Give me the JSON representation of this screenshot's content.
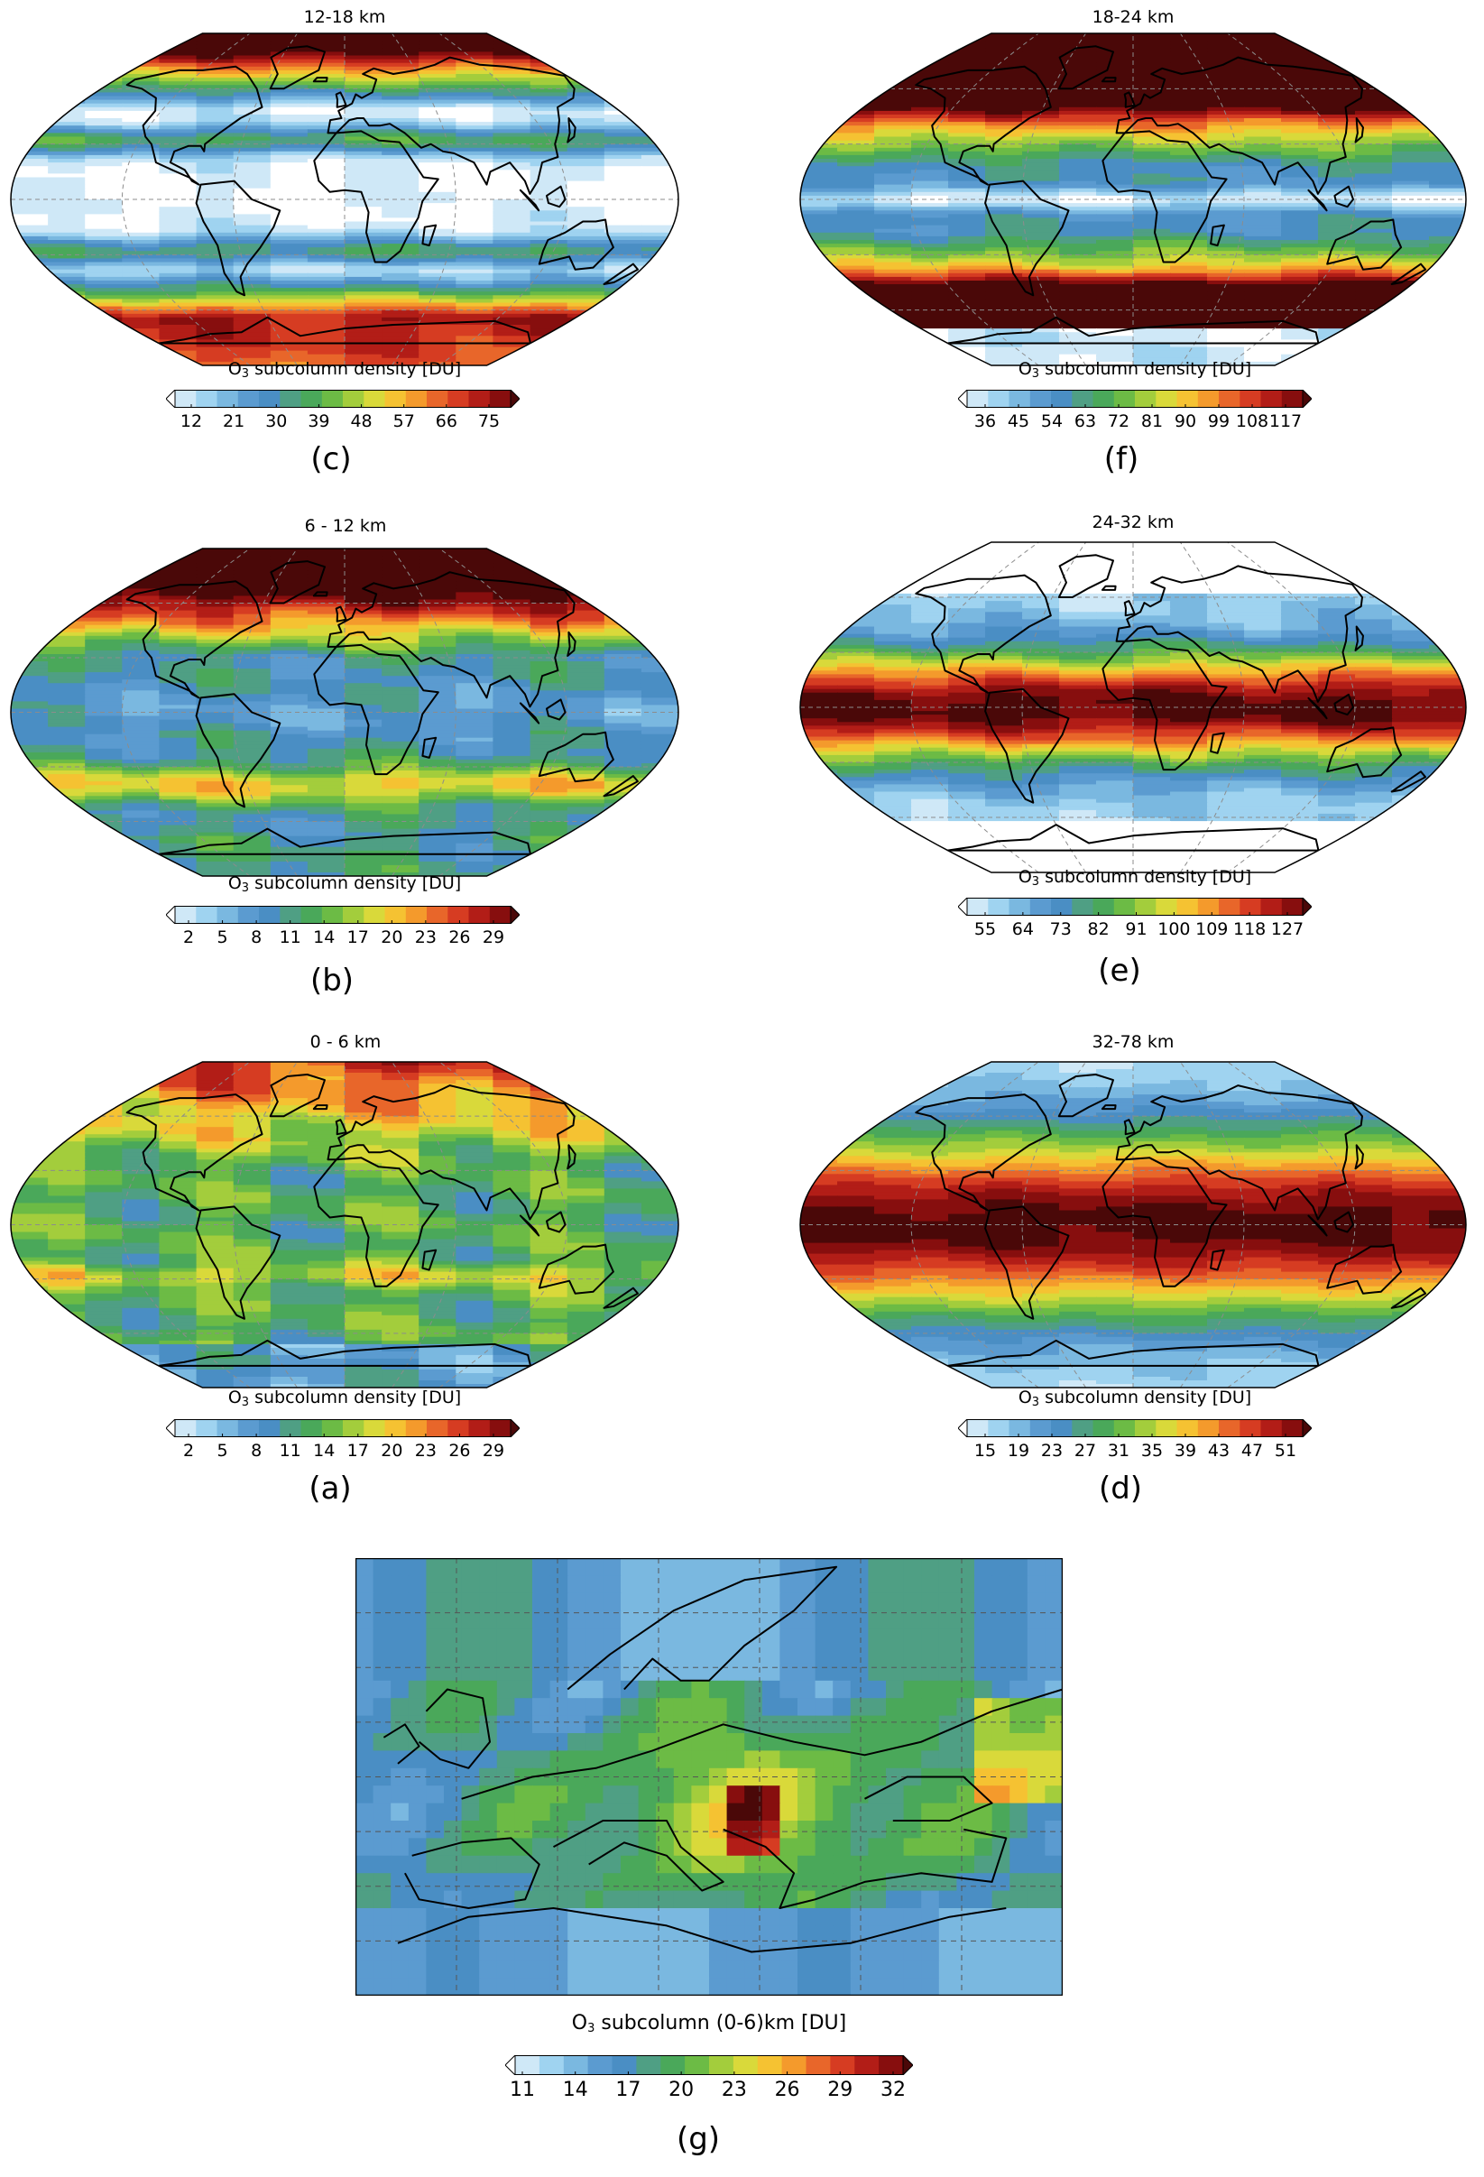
{
  "panels": [
    {
      "id": "c",
      "title": "12-18 km",
      "label": "(c)",
      "cb_prefix": "O",
      "cb_sub": "3",
      "cb_suffix": " subcolumn density [DU]",
      "ticks": [
        "12",
        "21",
        "30",
        "39",
        "48",
        "57",
        "66",
        "75"
      ],
      "type": "global",
      "pattern": "c"
    },
    {
      "id": "f",
      "title": "18-24 km",
      "label": "(f)",
      "cb_prefix": "O",
      "cb_sub": "3",
      "cb_suffix": " subcolumn density [DU]",
      "ticks": [
        "36",
        "45",
        "54",
        "63",
        "72",
        "81",
        "90",
        "99",
        "108",
        "117"
      ],
      "type": "global",
      "pattern": "f"
    },
    {
      "id": "b",
      "title": "6 - 12 km",
      "label": "(b)",
      "cb_prefix": "O",
      "cb_sub": "3",
      "cb_suffix": " subcolumn density [DU]",
      "ticks": [
        "2",
        "5",
        "8",
        "11",
        "14",
        "17",
        "20",
        "23",
        "26",
        "29"
      ],
      "type": "global",
      "pattern": "b"
    },
    {
      "id": "e",
      "title": "24-32 km",
      "label": "(e)",
      "cb_prefix": "O",
      "cb_sub": "3",
      "cb_suffix": " subcolumn density [DU]",
      "ticks": [
        "55",
        "64",
        "73",
        "82",
        "91",
        "100",
        "109",
        "118",
        "127"
      ],
      "type": "global",
      "pattern": "e"
    },
    {
      "id": "a",
      "title": "0 - 6 km",
      "label": "(a)",
      "cb_prefix": "O",
      "cb_sub": "3",
      "cb_suffix": " subcolumn density [DU]",
      "ticks": [
        "2",
        "5",
        "8",
        "11",
        "14",
        "17",
        "20",
        "23",
        "26",
        "29"
      ],
      "type": "global",
      "pattern": "a"
    },
    {
      "id": "d",
      "title": "32-78 km",
      "label": "(d)",
      "cb_prefix": "O",
      "cb_sub": "3",
      "cb_suffix": " subcolumn density [DU]",
      "ticks": [
        "15",
        "19",
        "23",
        "27",
        "31",
        "35",
        "39",
        "43",
        "47",
        "51"
      ],
      "type": "global",
      "pattern": "d"
    },
    {
      "id": "g",
      "title": "",
      "label": "(g)",
      "cb_prefix": "O",
      "cb_sub": "3",
      "cb_suffix": " subcolumn (0-6)km [DU]",
      "ticks": [
        "11",
        "14",
        "17",
        "20",
        "23",
        "26",
        "29",
        "32"
      ],
      "type": "europe",
      "pattern": "g"
    }
  ],
  "colormap": [
    "#ffffff",
    "#cfe8f7",
    "#9fd3f0",
    "#7ab8e0",
    "#5b9bd0",
    "#4a8ec4",
    "#4f9f84",
    "#4aa85a",
    "#6cbb45",
    "#a3cd3c",
    "#d9d93a",
    "#f5c232",
    "#f49a2c",
    "#e8662a",
    "#d63c22",
    "#b21d17",
    "#870e0e",
    "#4a0808"
  ],
  "colors": {
    "coast": "#000000",
    "grid": "#8c8c8c",
    "bg": "#ffffff"
  }
}
